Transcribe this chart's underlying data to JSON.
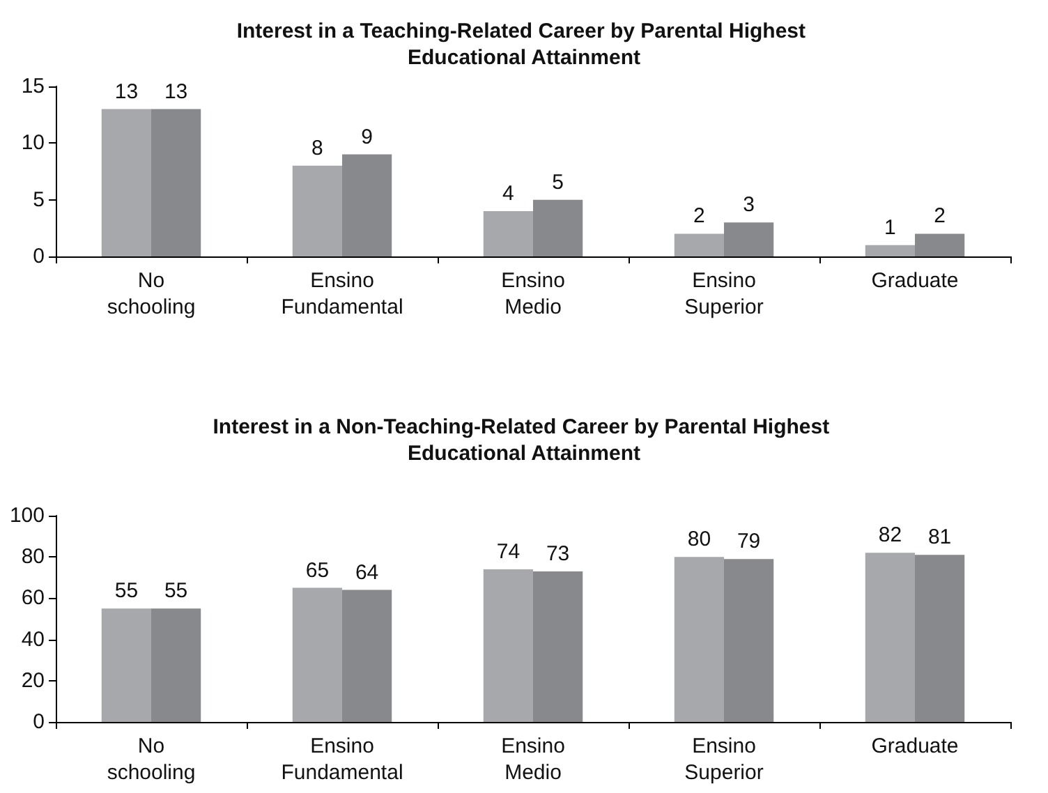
{
  "chart_data": [
    {
      "type": "bar",
      "title": "Interest in a Teaching-Related Career by Parental Highest Educational Attainment",
      "categories": [
        "No schooling",
        "Ensino Fundamental",
        "Ensino Medio",
        "Ensino Superior",
        "Graduate"
      ],
      "series": [
        {
          "color": "#a7a8ab",
          "values": [
            13,
            8,
            4,
            2,
            1
          ]
        },
        {
          "color": "#88898c",
          "values": [
            13,
            9,
            5,
            3,
            2
          ]
        }
      ],
      "ylim": [
        0,
        15
      ],
      "yticks": [
        0,
        5,
        10,
        15
      ],
      "grid": false,
      "data_labels": true
    },
    {
      "type": "bar",
      "title": "Interest in a Non-Teaching-Related Career by Parental Highest Educational Attainment",
      "categories": [
        "No schooling",
        "Ensino Fundamental",
        "Ensino Medio",
        "Ensino Superior",
        "Graduate"
      ],
      "series": [
        {
          "color": "#a7a8ab",
          "values": [
            55,
            65,
            74,
            80,
            82
          ]
        },
        {
          "color": "#88898c",
          "values": [
            55,
            64,
            73,
            79,
            81
          ]
        }
      ],
      "ylim": [
        0,
        100
      ],
      "yticks": [
        0,
        20,
        40,
        60,
        80,
        100
      ],
      "grid": false,
      "data_labels": true
    }
  ]
}
